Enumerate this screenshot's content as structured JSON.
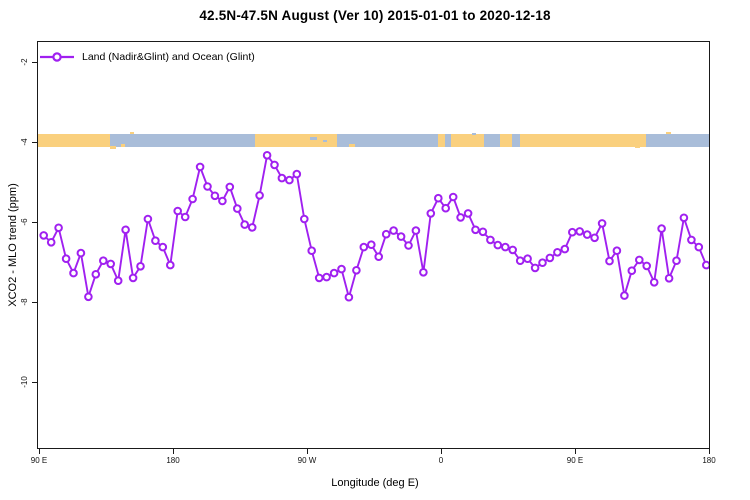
{
  "title": "42.5N-47.5N August (Ver 10)   2015-01-01 to 2020-12-18",
  "legend": {
    "label": "Land (Nadir&Glint) and Ocean (Glint)"
  },
  "axes": {
    "x": {
      "label": "Longitude (deg E)"
    },
    "y": {
      "label": "XCO2 - MLO trend (ppm)"
    }
  },
  "colors": {
    "series_line": "#A020F0",
    "marker_fill": "#FFFFFF",
    "land": "#FAD07E",
    "ocean": "#A9BDD9",
    "axis": "#1a1a1a",
    "background": "#FFFFFF"
  },
  "map_strip": {
    "segments": [
      {
        "f0": 0.0,
        "f1": 0.107,
        "type": "land"
      },
      {
        "f0": 0.107,
        "f1": 0.324,
        "type": "ocean"
      },
      {
        "f0": 0.324,
        "f1": 0.446,
        "type": "land"
      },
      {
        "f0": 0.446,
        "f1": 0.596,
        "type": "ocean"
      },
      {
        "f0": 0.596,
        "f1": 0.607,
        "type": "land"
      },
      {
        "f0": 0.607,
        "f1": 0.616,
        "type": "ocean"
      },
      {
        "f0": 0.616,
        "f1": 0.664,
        "type": "land"
      },
      {
        "f0": 0.664,
        "f1": 0.688,
        "type": "ocean"
      },
      {
        "f0": 0.688,
        "f1": 0.706,
        "type": "land"
      },
      {
        "f0": 0.706,
        "f1": 0.718,
        "type": "ocean"
      },
      {
        "f0": 0.718,
        "f1": 0.906,
        "type": "land"
      },
      {
        "f0": 0.906,
        "f1": 1.0,
        "type": "ocean"
      }
    ],
    "specks": [
      {
        "f": 0.112,
        "dy": 12,
        "w": 6,
        "h": 3,
        "type": "land"
      },
      {
        "f": 0.126,
        "dy": 10,
        "w": 4,
        "h": 3,
        "type": "land"
      },
      {
        "f": 0.14,
        "dy": -2,
        "w": 4,
        "h": 2,
        "type": "land"
      },
      {
        "f": 0.41,
        "dy": 3,
        "w": 7,
        "h": 3,
        "type": "ocean"
      },
      {
        "f": 0.427,
        "dy": 6,
        "w": 4,
        "h": 2,
        "type": "ocean"
      },
      {
        "f": 0.468,
        "dy": 10,
        "w": 6,
        "h": 3,
        "type": "land"
      },
      {
        "f": 0.65,
        "dy": -1,
        "w": 4,
        "h": 2,
        "type": "ocean"
      },
      {
        "f": 0.893,
        "dy": 11,
        "w": 5,
        "h": 3,
        "type": "land"
      },
      {
        "f": 0.94,
        "dy": -2,
        "w": 5,
        "h": 2,
        "type": "land"
      }
    ]
  },
  "chart_data": {
    "type": "line",
    "title": "42.5N-47.5N August (Ver 10)   2015-01-01 to 2020-12-18",
    "xlabel": "Longitude (deg E)",
    "ylabel": "XCO2 - MLO trend (ppm)",
    "xlim": [
      90,
      540
    ],
    "ylim": [
      -11.66,
      -1.48
    ],
    "grid": false,
    "legend_position": "top-left",
    "x_ticks": [
      {
        "value": 90,
        "label": "90 E"
      },
      {
        "value": 180,
        "label": "180"
      },
      {
        "value": 270,
        "label": "90 W"
      },
      {
        "value": 360,
        "label": "0"
      },
      {
        "value": 450,
        "label": "90 E"
      },
      {
        "value": 540,
        "label": "180"
      }
    ],
    "y_ticks": [
      {
        "value": -2,
        "label": "-2"
      },
      {
        "value": -4,
        "label": "-4"
      },
      {
        "value": -6,
        "label": "-6"
      },
      {
        "value": -8,
        "label": "-8"
      },
      {
        "value": -10,
        "label": "-10"
      }
    ],
    "series": [
      {
        "name": "Land (Nadir&Glint) and Ocean (Glint)",
        "color": "#A020F0",
        "marker": "open-circle",
        "x": [
          92.5,
          97.5,
          102.5,
          107.5,
          112.5,
          117.5,
          122.5,
          127.5,
          132.5,
          137.5,
          142.5,
          147.5,
          152.5,
          157.5,
          162.5,
          167.5,
          172.5,
          177.5,
          182.5,
          187.5,
          192.5,
          197.5,
          202.5,
          207.5,
          212.5,
          217.5,
          222.5,
          227.5,
          232.5,
          237.5,
          242.5,
          247.5,
          252.5,
          257.5,
          262.5,
          267.5,
          272.5,
          277.5,
          282.5,
          287.5,
          292.5,
          297.5,
          302.5,
          307.5,
          312.5,
          317.5,
          322.5,
          327.5,
          332.5,
          337.5,
          342.5,
          347.5,
          352.5,
          357.5,
          362.5,
          367.5,
          372.5,
          377.5,
          382.5,
          387.5,
          392.5,
          397.5,
          402.5,
          407.5,
          412.5,
          417.5,
          422.5,
          427.5,
          432.5,
          437.5,
          442.5,
          447.5,
          452.5,
          457.5,
          462.5,
          467.5,
          472.5,
          477.5,
          482.5,
          487.5,
          492.5,
          497.5,
          502.5,
          507.5,
          512.5,
          517.5,
          522.5,
          527.5,
          532.5,
          537.5
        ],
        "values": [
          -6.31,
          -6.48,
          -6.12,
          -6.89,
          -7.25,
          -6.75,
          -7.84,
          -7.28,
          -6.94,
          -7.02,
          -7.44,
          -6.17,
          -7.37,
          -7.08,
          -5.9,
          -6.44,
          -6.6,
          -7.05,
          -5.7,
          -5.85,
          -5.4,
          -4.6,
          -5.09,
          -5.32,
          -5.45,
          -5.1,
          -5.64,
          -6.04,
          -6.11,
          -5.31,
          -4.31,
          -4.55,
          -4.88,
          -4.93,
          -4.78,
          -5.9,
          -6.69,
          -7.37,
          -7.35,
          -7.25,
          -7.15,
          -7.85,
          -7.18,
          -6.6,
          -6.54,
          -6.84,
          -6.28,
          -6.19,
          -6.34,
          -6.56,
          -6.19,
          -7.23,
          -5.76,
          -5.38,
          -5.63,
          -5.35,
          -5.86,
          -5.76,
          -6.17,
          -6.22,
          -6.42,
          -6.55,
          -6.6,
          -6.67,
          -6.94,
          -6.89,
          -7.12,
          -6.99,
          -6.87,
          -6.73,
          -6.65,
          -6.23,
          -6.21,
          -6.29,
          -6.37,
          -6.01,
          -6.95,
          -6.69,
          -7.81,
          -7.19,
          -6.92,
          -7.07,
          -7.48,
          -6.14,
          -7.38,
          -6.94,
          -5.87,
          -6.42,
          -6.6,
          -7.05
        ]
      }
    ]
  }
}
